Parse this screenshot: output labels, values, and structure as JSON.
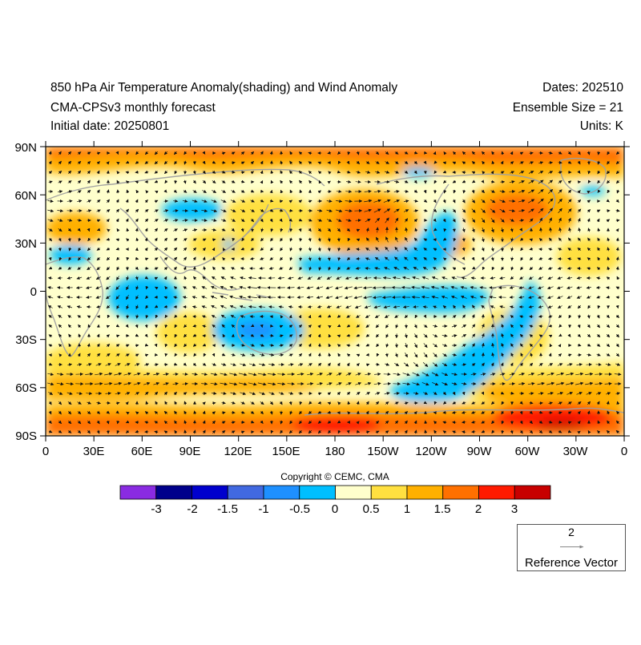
{
  "header": {
    "title": "850 hPa Air Temperature Anomaly(shading) and Wind Anomaly",
    "model": "CMA-CPSv3 monthly forecast",
    "initial": "Initial date: 20250801",
    "dates": "Dates: 202510",
    "ensemble": "Ensemble Size = 21",
    "units": "Units: K"
  },
  "axes": {
    "lat_labels": [
      "90N",
      "60N",
      "30N",
      "0",
      "30S",
      "60S",
      "90S"
    ],
    "lon_labels": [
      "0",
      "30E",
      "60E",
      "90E",
      "120E",
      "150E",
      "180",
      "150W",
      "120W",
      "90W",
      "60W",
      "30W",
      "0"
    ]
  },
  "colorbar": {
    "colors": [
      "#8a2be2",
      "#00008b",
      "#0000cd",
      "#4169e1",
      "#1e90ff",
      "#00bfff",
      "#ffffcc",
      "#ffe040",
      "#ffb000",
      "#ff7000",
      "#ff1a00",
      "#c80000"
    ],
    "labels": [
      "-3",
      "-2",
      "-1.5",
      "-1",
      "-0.5",
      "0",
      "0.5",
      "1",
      "1.5",
      "2",
      "3"
    ]
  },
  "copyright": "Copyright © CEMC, CMA",
  "reference_vector": {
    "magnitude": "2",
    "label": "Reference Vector"
  }
}
